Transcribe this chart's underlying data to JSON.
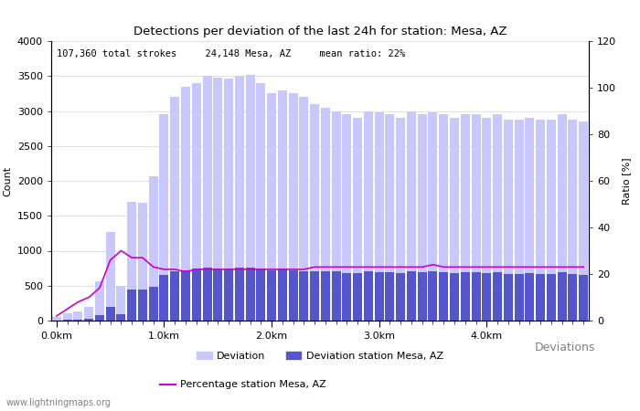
{
  "title": "Detections per deviation of the last 24h for station: Mesa, AZ",
  "annotation": "107,360 total strokes     24,148 Mesa, AZ     mean ratio: 22%",
  "xlabel": "Deviations",
  "ylabel_left": "Count",
  "ylabel_right": "Ratio [%]",
  "watermark": "www.lightningmaps.org",
  "ylim_left": [
    0,
    4000
  ],
  "ylim_right": [
    0,
    120
  ],
  "xtick_positions": [
    0,
    10,
    20,
    30,
    40
  ],
  "xtick_labels": [
    "0.0km",
    "1.0km",
    "2.0km",
    "3.0km",
    "4.0km"
  ],
  "ytick_left": [
    0,
    500,
    1000,
    1500,
    2000,
    2500,
    3000,
    3500,
    4000
  ],
  "ytick_right": [
    0,
    20,
    40,
    60,
    80,
    100,
    120
  ],
  "bar_color_light": "#c8c8ff",
  "bar_color_dark": "#5555cc",
  "line_color": "#cc00cc",
  "total_bars": [
    50,
    100,
    130,
    200,
    560,
    1270,
    500,
    1700,
    1680,
    2060,
    2950,
    3200,
    3350,
    3400,
    3500,
    3480,
    3460,
    3500,
    3520,
    3400,
    3250,
    3300,
    3250,
    3200,
    3100,
    3050,
    3000,
    2950,
    2900,
    3000,
    2980,
    2950,
    2900,
    3000,
    2950,
    2980,
    2950,
    2900,
    2950,
    2950,
    2900,
    2960,
    2870,
    2880,
    2900,
    2870,
    2870,
    2950,
    2870,
    2850
  ],
  "station_bars": [
    5,
    10,
    15,
    30,
    80,
    200,
    90,
    450,
    450,
    480,
    650,
    700,
    720,
    750,
    760,
    750,
    750,
    760,
    760,
    740,
    720,
    740,
    720,
    710,
    700,
    710,
    700,
    680,
    680,
    700,
    690,
    690,
    680,
    700,
    690,
    700,
    690,
    680,
    690,
    690,
    680,
    695,
    665,
    670,
    675,
    665,
    665,
    690,
    665,
    660
  ],
  "ratio_line": [
    2,
    5,
    8,
    10,
    14,
    26,
    30,
    27,
    27,
    23,
    22,
    22,
    21,
    22,
    22,
    22,
    22,
    22,
    22,
    22,
    22,
    22,
    22,
    22,
    23,
    23,
    23,
    23,
    23,
    23,
    23,
    23,
    23,
    23,
    23,
    24,
    23,
    23,
    23,
    23,
    23,
    23,
    23,
    23,
    23,
    23,
    23,
    23,
    23,
    23
  ],
  "legend_left_label": "Deviation",
  "legend_center_label": "Deviation station Mesa, AZ",
  "legend_line_label": "Percentage station Mesa, AZ"
}
